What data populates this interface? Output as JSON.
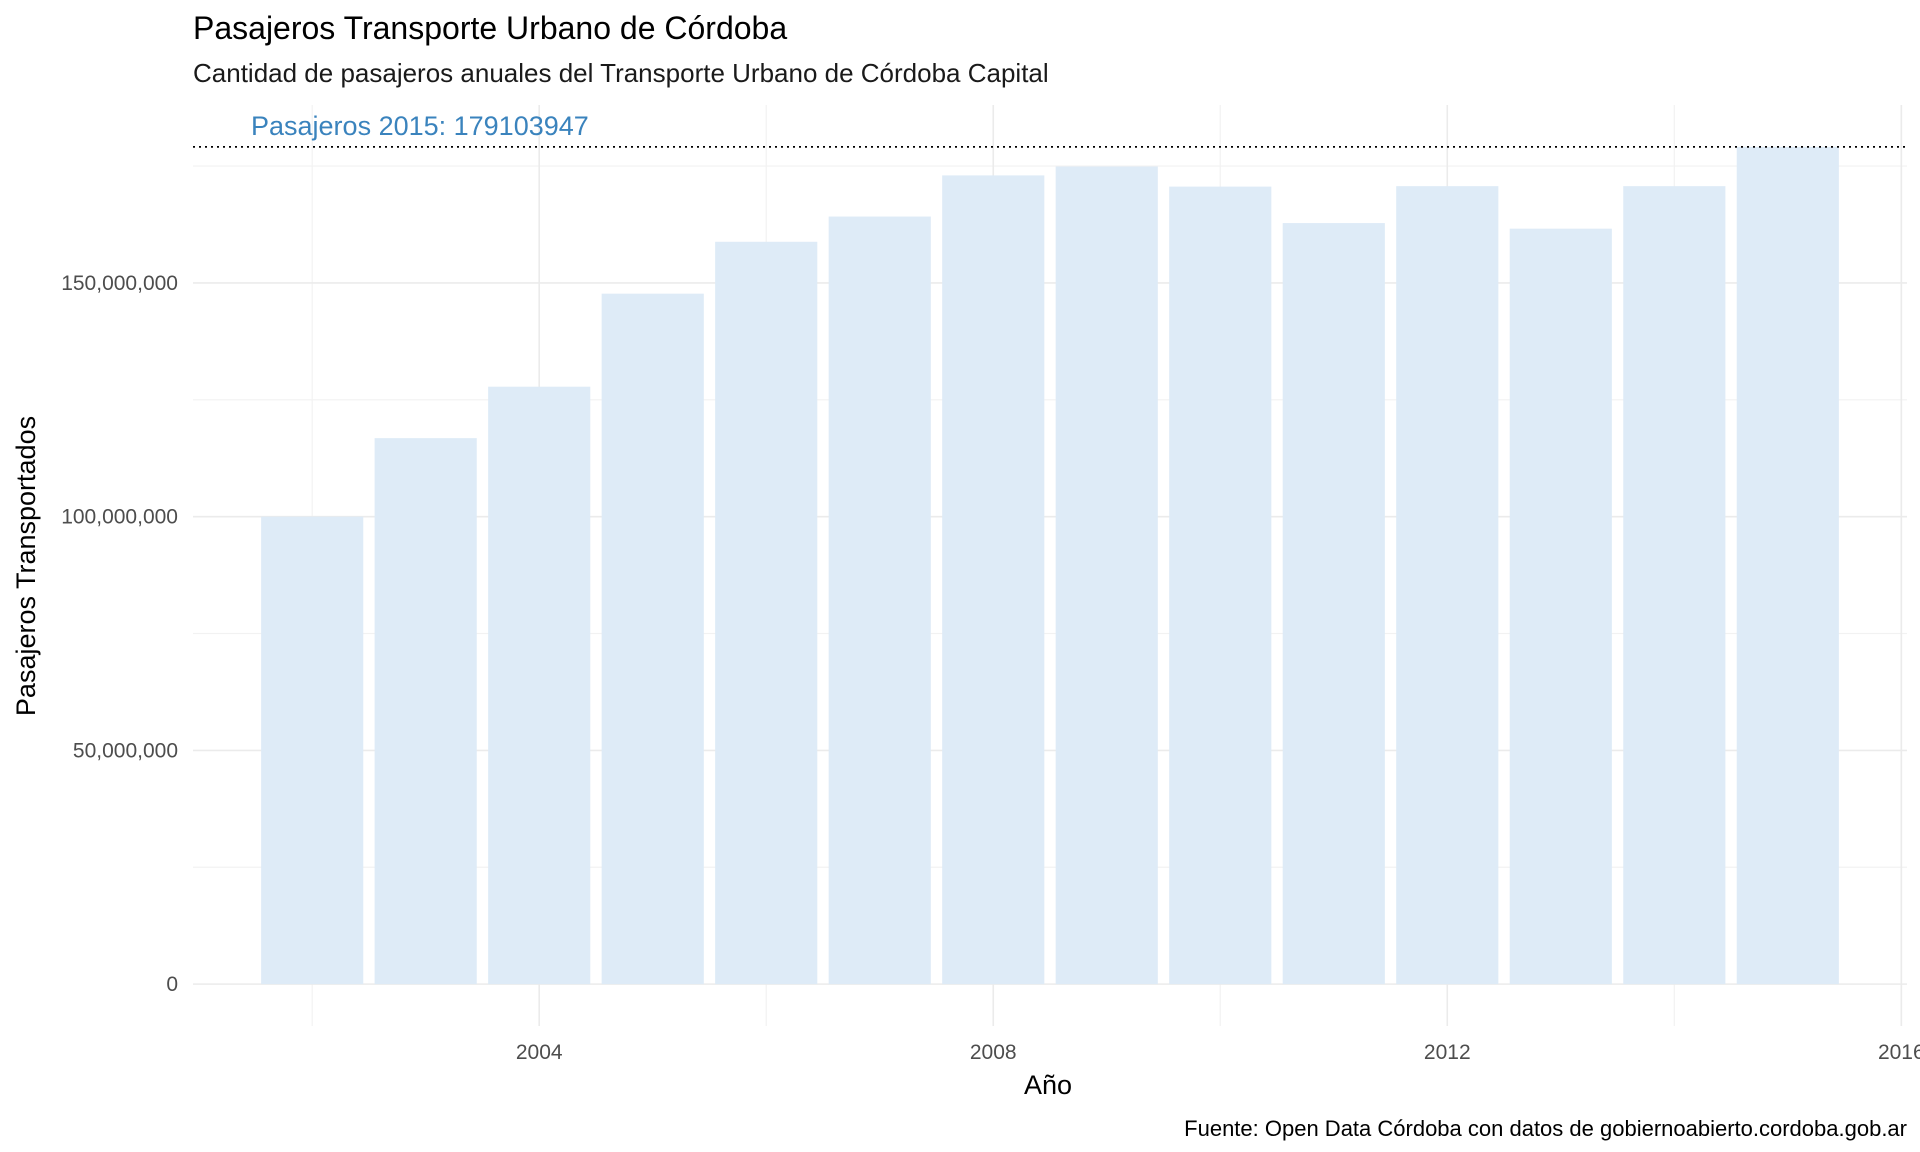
{
  "chart_data": {
    "type": "bar",
    "title": "Pasajeros Transporte Urbano de Córdoba",
    "subtitle": "Cantidad de pasajeros anuales del Transporte Urbano de Córdoba Capital",
    "xlabel": "Año",
    "ylabel": "Pasajeros Transportados",
    "caption": "Fuente: Open Data Córdoba con datos de gobiernoabierto.cordoba.gob.ar",
    "categories": [
      2002,
      2003,
      2004,
      2005,
      2006,
      2007,
      2008,
      2009,
      2010,
      2011,
      2012,
      2013,
      2014,
      2015
    ],
    "values": [
      100000000,
      116800000,
      127800000,
      147700000,
      158800000,
      164200000,
      173000000,
      174900000,
      170600000,
      162800000,
      170700000,
      161600000,
      170700000,
      179103947
    ],
    "x_ticks": [
      "2004",
      "2008",
      "2012",
      "2016"
    ],
    "x_tick_values": [
      2004,
      2008,
      2012,
      2016
    ],
    "xlim": [
      2000.95,
      2016.05
    ],
    "y_ticks": [
      "0",
      "50,000,000",
      "100,000,000",
      "150,000,000"
    ],
    "y_tick_values": [
      0,
      50000000,
      100000000,
      150000000
    ],
    "ylim": [
      -8955197,
      188059144
    ],
    "reference_line": {
      "value": 179103947,
      "style": "dotted",
      "label": "Pasajeros 2015: 179103947"
    },
    "bar_color": "#deebf7",
    "label_color": "#3a83bd",
    "grid": true,
    "legend": "none"
  }
}
